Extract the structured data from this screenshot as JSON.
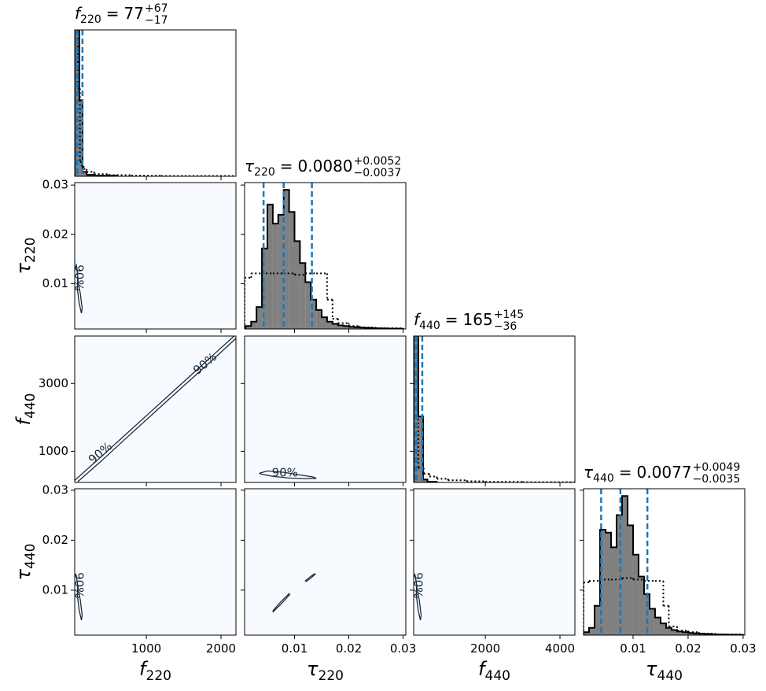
{
  "chart_data": {
    "type": "corner",
    "relation": "=",
    "hist_ylim": [
      0,
      1
    ],
    "background": "#f7fbff",
    "hist_color": "#808080",
    "line_color": "#000000",
    "quantile_color": "#1f77b4",
    "contour_color": "#1a2a3a",
    "parameters": [
      {
        "symbol": "f",
        "subscript": "220",
        "lim": [
          40,
          2200
        ],
        "xticks": [
          1000,
          2000
        ],
        "yticks": [],
        "title": {
          "value": 77,
          "upper": {
            "value": 67,
            "label": "+67"
          },
          "lower": {
            "value": -17,
            "label": "−17"
          }
        },
        "posterior": {
          "bins": [
            40,
            103,
            145,
            200,
            300,
            600
          ],
          "counts": [
            1.0,
            0.52,
            0.03,
            0.01,
            0.004
          ]
        },
        "prior": {
          "bins": [
            40,
            80,
            110,
            130,
            160,
            200,
            300,
            500,
            800,
            1200,
            2200
          ],
          "counts": [
            1.0,
            0.6,
            0.1,
            0.07,
            0.05,
            0.03,
            0.015,
            0.008,
            0.004,
            0.002
          ]
        }
      },
      {
        "symbol": "τ",
        "subscript": "220",
        "lim": [
          0.0008,
          0.0305
        ],
        "xticks": [
          0.01,
          0.02,
          0.03
        ],
        "yticks": [
          0.01,
          0.02,
          0.03
        ],
        "title": {
          "value": {
            "value": 0.008,
            "label": "0.0080"
          },
          "upper": {
            "value": 0.0052,
            "label": "+0.0052"
          },
          "lower": {
            "value": -0.0037,
            "label": "−0.0037"
          }
        },
        "posterior": {
          "bins": [
            0.001,
            0.002,
            0.003,
            0.004,
            0.005,
            0.006,
            0.007,
            0.008,
            0.009,
            0.01,
            0.011,
            0.012,
            0.013,
            0.014,
            0.015,
            0.016,
            0.017,
            0.018,
            0.019,
            0.02,
            0.021,
            0.022,
            0.023,
            0.024,
            0.025,
            0.026,
            0.027,
            0.028,
            0.029,
            0.03
          ],
          "counts": [
            0.02,
            0.05,
            0.15,
            0.55,
            0.85,
            0.72,
            0.78,
            0.95,
            0.8,
            0.6,
            0.45,
            0.32,
            0.2,
            0.13,
            0.08,
            0.05,
            0.035,
            0.025,
            0.02,
            0.015,
            0.012,
            0.01,
            0.008,
            0.006,
            0.005,
            0.004,
            0.003,
            0.003,
            0.002
          ]
        },
        "prior": {
          "bins": [
            0.0008,
            0.002,
            0.004,
            0.006,
            0.008,
            0.01,
            0.012,
            0.014,
            0.016,
            0.017,
            0.018,
            0.02,
            0.022,
            0.025,
            0.03
          ],
          "counts": [
            0.35,
            0.38,
            0.38,
            0.38,
            0.38,
            0.37,
            0.38,
            0.38,
            0.2,
            0.07,
            0.04,
            0.02,
            0.01,
            0.005
          ]
        }
      },
      {
        "symbol": "f",
        "subscript": "440",
        "lim": [
          80,
          4400
        ],
        "xticks": [
          2000,
          4000
        ],
        "yticks": [
          1000,
          3000
        ],
        "title": {
          "value": 165,
          "upper": {
            "value": 145,
            "label": "+145"
          },
          "lower": {
            "value": -36,
            "label": "−36"
          }
        },
        "posterior": {
          "bins": [
            80,
            206,
            333,
            450,
            700
          ],
          "counts": [
            1.0,
            0.45,
            0.02,
            0.005
          ]
        },
        "prior": {
          "bins": [
            80,
            200,
            350,
            500,
            700,
            1000,
            1500,
            2000,
            3000,
            4400
          ],
          "counts": [
            1.0,
            0.1,
            0.06,
            0.04,
            0.025,
            0.015,
            0.008,
            0.004,
            0.002
          ]
        }
      },
      {
        "symbol": "τ",
        "subscript": "440",
        "lim": [
          0.001,
          0.0303
        ],
        "xticks": [
          0.01,
          0.02,
          0.03
        ],
        "yticks": [
          0.01,
          0.02,
          0.03
        ],
        "title": {
          "value": {
            "value": 0.0077,
            "label": "0.0077"
          },
          "upper": {
            "value": 0.0049,
            "label": "+0.0049"
          },
          "lower": {
            "value": -0.0035,
            "label": "−0.0035"
          }
        },
        "posterior": {
          "bins": [
            0.001,
            0.002,
            0.003,
            0.004,
            0.005,
            0.006,
            0.007,
            0.008,
            0.009,
            0.01,
            0.011,
            0.012,
            0.013,
            0.014,
            0.015,
            0.016,
            0.017,
            0.018,
            0.019,
            0.02,
            0.021,
            0.022,
            0.023,
            0.024,
            0.025,
            0.026,
            0.027,
            0.028,
            0.029,
            0.03
          ],
          "counts": [
            0.02,
            0.05,
            0.2,
            0.72,
            0.7,
            0.6,
            0.82,
            0.95,
            0.75,
            0.55,
            0.4,
            0.28,
            0.18,
            0.12,
            0.08,
            0.05,
            0.035,
            0.025,
            0.02,
            0.015,
            0.012,
            0.01,
            0.008,
            0.006,
            0.005,
            0.004,
            0.003,
            0.003,
            0.002
          ]
        },
        "prior": {
          "bins": [
            0.001,
            0.002,
            0.004,
            0.006,
            0.008,
            0.01,
            0.012,
            0.014,
            0.0155,
            0.0165,
            0.018,
            0.02,
            0.022,
            0.025,
            0.03
          ],
          "counts": [
            0.36,
            0.37,
            0.38,
            0.38,
            0.39,
            0.38,
            0.37,
            0.37,
            0.2,
            0.06,
            0.03,
            0.02,
            0.01,
            0.005
          ]
        }
      }
    ],
    "pairs": [
      {
        "label": "90%",
        "contours": [
          {
            "x": [
              60,
              80,
              75,
              100,
              130,
              140,
              115,
              90,
              70,
              60
            ],
            "y": [
              0.014,
              0.012,
              0.009,
              0.006,
              0.004,
              0.005,
              0.008,
              0.01,
              0.013,
              0.014
            ]
          }
        ]
      },
      {
        "label": "90%",
        "contours": [
          {
            "x": [
              40,
              400,
              800,
              1100,
              1500,
              1900,
              2200
            ],
            "y": [
              140,
              850,
              1650,
              2250,
              3050,
              3850,
              4450
            ]
          },
          {
            "x": [
              80,
              400,
              800,
              1100,
              1500,
              1900,
              2200
            ],
            "y": [
              100,
              720,
              1530,
              2130,
              2930,
              3720,
              4330
            ]
          }
        ]
      },
      {
        "label": "90%",
        "contours": [
          {
            "x": [
              0.0035,
              0.005,
              0.008,
              0.011,
              0.0135,
              0.014,
              0.012,
              0.009,
              0.006,
              0.004,
              0.0035
            ],
            "y": [
              350,
              420,
              380,
              300,
              240,
              200,
              190,
              210,
              260,
              320,
              350
            ]
          }
        ]
      },
      {
        "label": "90%",
        "contours": [
          {
            "x": [
              60,
              80,
              75,
              100,
              130,
              140,
              115,
              90,
              70,
              60
            ],
            "y": [
              0.013,
              0.011,
              0.009,
              0.006,
              0.004,
              0.005,
              0.008,
              0.01,
              0.012,
              0.013
            ]
          }
        ]
      },
      {
        "contours": [
          {
            "x": [
              0.006,
              0.0075,
              0.0091,
              0.009,
              0.0075,
              0.0061,
              0.006
            ],
            "y": [
              0.0056,
              0.0072,
              0.0091,
              0.0093,
              0.0077,
              0.006,
              0.0056
            ]
          },
          {
            "x": [
              0.0121,
              0.013,
              0.0138,
              0.0137,
              0.0128,
              0.012,
              0.0121
            ],
            "y": [
              0.0117,
              0.0124,
              0.0132,
              0.0133,
              0.0126,
              0.0119,
              0.0117
            ]
          }
        ]
      },
      {
        "label": "90%",
        "contours": [
          {
            "x": [
              120,
              160,
              150,
              200,
              260,
              280,
              230,
              180,
              140,
              120
            ],
            "y": [
              0.013,
              0.011,
              0.009,
              0.006,
              0.004,
              0.005,
              0.008,
              0.01,
              0.012,
              0.013
            ]
          }
        ]
      }
    ]
  }
}
